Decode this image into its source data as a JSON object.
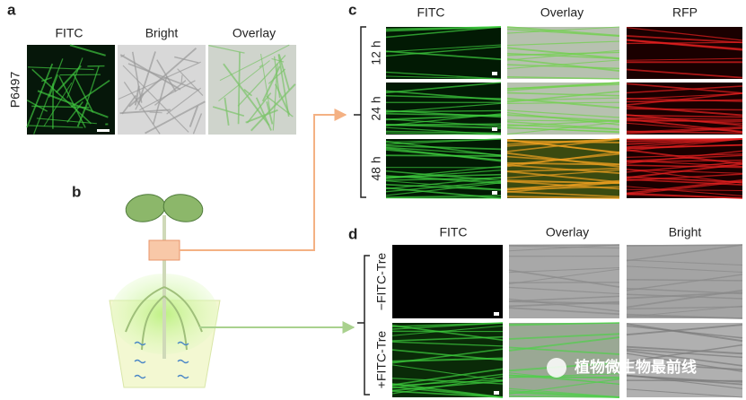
{
  "panels": {
    "a": {
      "label": "a",
      "columns": [
        "FITC",
        "Bright",
        "Overlay"
      ],
      "row": "P6497"
    },
    "b": {
      "label": "b"
    },
    "c": {
      "label": "c",
      "columns": [
        "FITC",
        "Overlay",
        "RFP"
      ],
      "rows": [
        "12 h",
        "24 h",
        "48 h"
      ]
    },
    "d": {
      "label": "d",
      "columns": [
        "FITC",
        "Overlay",
        "Bright"
      ],
      "rows": [
        "−FITC-Tre",
        "+FITC-Tre"
      ]
    }
  },
  "watermark": "植物微生物最前线"
}
